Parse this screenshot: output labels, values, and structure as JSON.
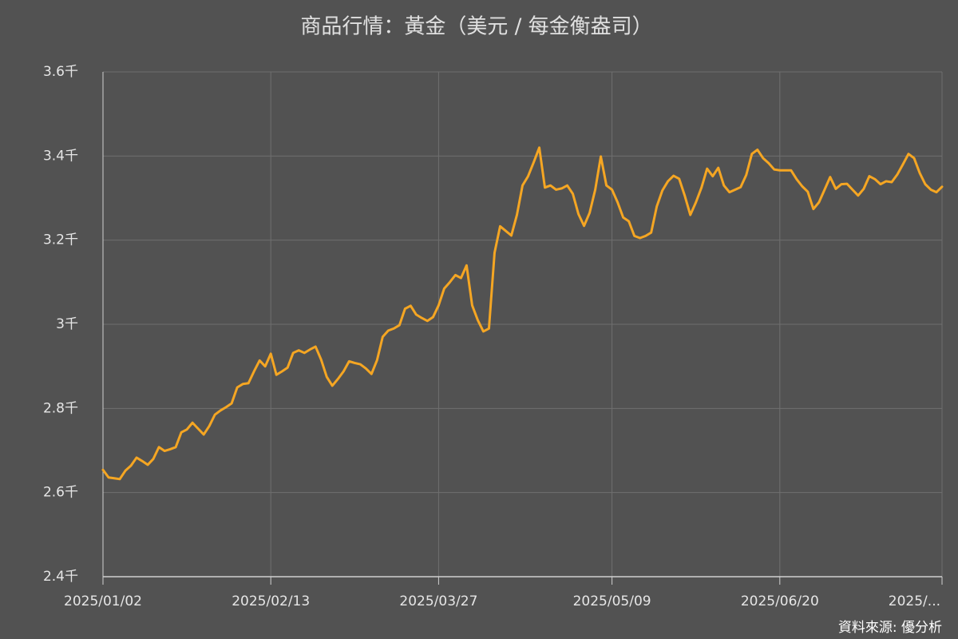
{
  "chart_data": {
    "type": "line",
    "title": "商品行情：黃金（美元 / 每金衡盎司）",
    "source": "資料來源: 優分析",
    "color": "#f5a623",
    "grid": true,
    "ylim": [
      2400,
      3600
    ],
    "yticks": [
      {
        "value": 2400,
        "label": "2.4千"
      },
      {
        "value": 2600,
        "label": "2.6千"
      },
      {
        "value": 2800,
        "label": "2.8千"
      },
      {
        "value": 3000,
        "label": "3千"
      },
      {
        "value": 3200,
        "label": "3.2千"
      },
      {
        "value": 3400,
        "label": "3.4千"
      },
      {
        "value": 3600,
        "label": "3.6千"
      }
    ],
    "categories": [
      "2025/01/02",
      null,
      null,
      null,
      null,
      null,
      null,
      null,
      null,
      null,
      null,
      null,
      null,
      null,
      null,
      null,
      null,
      null,
      null,
      null,
      null,
      null,
      null,
      null,
      null,
      null,
      null,
      null,
      null,
      null,
      "2025/02/13",
      null,
      null,
      null,
      null,
      null,
      null,
      null,
      null,
      null,
      null,
      null,
      null,
      null,
      null,
      null,
      null,
      null,
      null,
      null,
      null,
      null,
      null,
      null,
      null,
      null,
      null,
      null,
      null,
      null,
      "2025/03/27",
      null,
      null,
      null,
      null,
      null,
      null,
      null,
      null,
      null,
      null,
      null,
      null,
      null,
      null,
      null,
      null,
      null,
      null,
      null,
      null,
      null,
      null,
      null,
      null,
      null,
      null,
      null,
      null,
      null,
      null,
      "2025/05/09",
      null,
      null,
      null,
      null,
      null,
      null,
      null,
      null,
      null,
      null,
      null,
      null,
      null,
      null,
      null,
      null,
      null,
      null,
      null,
      null,
      null,
      null,
      null,
      null,
      null,
      null,
      null,
      null,
      null,
      "2025/06/20",
      null,
      null,
      null,
      null,
      null,
      null,
      null,
      null,
      null,
      null,
      null,
      null,
      null,
      null,
      null,
      null,
      null,
      null,
      null,
      null,
      null,
      null,
      null,
      null,
      null,
      null,
      null,
      null,
      "2025/..."
    ],
    "values": [
      2654,
      2636,
      2634,
      2632,
      2652,
      2664,
      2683,
      2675,
      2666,
      2680,
      2708,
      2699,
      2703,
      2708,
      2743,
      2750,
      2766,
      2752,
      2738,
      2758,
      2785,
      2795,
      2803,
      2812,
      2850,
      2858,
      2860,
      2888,
      2914,
      2900,
      2930,
      2880,
      2888,
      2897,
      2932,
      2938,
      2932,
      2940,
      2947,
      2916,
      2875,
      2854,
      2870,
      2888,
      2912,
      2908,
      2905,
      2895,
      2882,
      2915,
      2970,
      2985,
      2990,
      2998,
      3037,
      3044,
      3023,
      3015,
      3008,
      3017,
      3045,
      3085,
      3100,
      3117,
      3110,
      3140,
      3045,
      3010,
      2983,
      2990,
      3170,
      3233,
      3222,
      3211,
      3260,
      3330,
      3352,
      3385,
      3420,
      3325,
      3330,
      3320,
      3323,
      3330,
      3310,
      3262,
      3234,
      3265,
      3320,
      3399,
      3330,
      3320,
      3290,
      3254,
      3245,
      3210,
      3205,
      3210,
      3218,
      3280,
      3318,
      3340,
      3353,
      3346,
      3306,
      3260,
      3290,
      3325,
      3370,
      3352,
      3372,
      3330,
      3314,
      3320,
      3326,
      3355,
      3405,
      3415,
      3395,
      3383,
      3368,
      3366,
      3366,
      3366,
      3345,
      3328,
      3315,
      3274,
      3290,
      3320,
      3350,
      3322,
      3333,
      3334,
      3320,
      3306,
      3322,
      3352,
      3345,
      3333,
      3340,
      3338,
      3356,
      3380,
      3405,
      3395,
      3360,
      3333,
      3320,
      3314,
      3327
    ]
  }
}
